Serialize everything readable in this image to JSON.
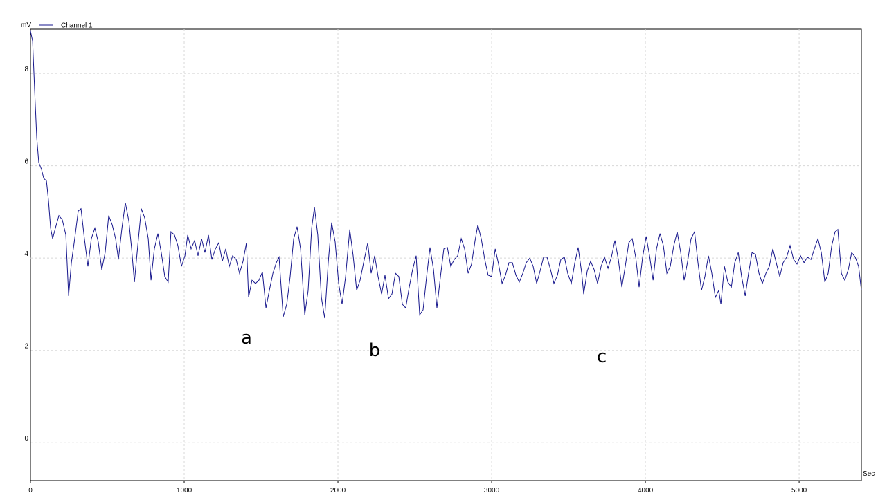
{
  "chart_data": {
    "type": "line",
    "y_label": "mV",
    "x_label": "Sec",
    "xlim": [
      0,
      5405
    ],
    "ylim": [
      -0.82,
      8.96
    ],
    "xticks": [
      0,
      1000,
      2000,
      3000,
      4000,
      5000
    ],
    "yticks": [
      0,
      2,
      4,
      6,
      8
    ],
    "grid": true,
    "legend": "top-left",
    "annotations": [
      "a",
      "b",
      "c"
    ],
    "x": [
      0,
      14,
      27,
      41,
      54,
      72,
      86,
      104,
      117,
      131,
      144,
      162,
      185,
      207,
      230,
      248,
      266,
      288,
      311,
      329,
      351,
      374,
      396,
      419,
      441,
      464,
      486,
      509,
      532,
      554,
      572,
      595,
      617,
      640,
      658,
      676,
      698,
      721,
      743,
      766,
      784,
      806,
      829,
      851,
      874,
      896,
      914,
      937,
      959,
      982,
      1005,
      1023,
      1045,
      1068,
      1090,
      1113,
      1135,
      1158,
      1180,
      1203,
      1225,
      1248,
      1270,
      1293,
      1315,
      1338,
      1360,
      1383,
      1405,
      1419,
      1441,
      1464,
      1486,
      1509,
      1532,
      1554,
      1577,
      1599,
      1617,
      1644,
      1667,
      1689,
      1712,
      1734,
      1757,
      1784,
      1806,
      1829,
      1847,
      1869,
      1892,
      1914,
      1937,
      1959,
      1982,
      2005,
      2027,
      2050,
      2077,
      2099,
      2122,
      2144,
      2167,
      2194,
      2216,
      2239,
      2261,
      2284,
      2306,
      2329,
      2351,
      2374,
      2396,
      2419,
      2441,
      2464,
      2486,
      2509,
      2532,
      2554,
      2577,
      2599,
      2622,
      2644,
      2667,
      2689,
      2712,
      2734,
      2757,
      2779,
      2802,
      2824,
      2847,
      2869,
      2892,
      2910,
      2932,
      2955,
      2977,
      3000,
      3023,
      3045,
      3068,
      3090,
      3113,
      3135,
      3158,
      3180,
      3203,
      3225,
      3248,
      3270,
      3293,
      3315,
      3338,
      3360,
      3383,
      3405,
      3428,
      3450,
      3473,
      3495,
      3518,
      3541,
      3563,
      3586,
      3599,
      3622,
      3644,
      3667,
      3689,
      3712,
      3734,
      3757,
      3779,
      3802,
      3824,
      3847,
      3869,
      3892,
      3914,
      3937,
      3959,
      3982,
      4005,
      4027,
      4050,
      4072,
      4095,
      4117,
      4140,
      4162,
      4185,
      4207,
      4230,
      4252,
      4275,
      4297,
      4320,
      4342,
      4365,
      4387,
      4410,
      4432,
      4455,
      4477,
      4491,
      4514,
      4536,
      4559,
      4581,
      4604,
      4626,
      4649,
      4671,
      4694,
      4716,
      4739,
      4761,
      4784,
      4806,
      4829,
      4851,
      4874,
      4896,
      4919,
      4941,
      4964,
      4986,
      5009,
      5032,
      5054,
      5077,
      5099,
      5122,
      5144,
      5167,
      5189,
      5212,
      5234,
      5252,
      5275,
      5297,
      5320,
      5342,
      5365,
      5387,
      5405
    ],
    "series": [
      {
        "name": "Channel 1",
        "color": "#16168c",
        "values": [
          8.92,
          8.7,
          7.65,
          6.6,
          6.07,
          5.92,
          5.73,
          5.67,
          5.25,
          4.65,
          4.42,
          4.65,
          4.92,
          4.83,
          4.5,
          3.18,
          3.9,
          4.42,
          5.02,
          5.07,
          4.42,
          3.82,
          4.42,
          4.65,
          4.35,
          3.75,
          4.12,
          4.92,
          4.72,
          4.42,
          3.97,
          4.65,
          5.2,
          4.8,
          4.2,
          3.48,
          4.27,
          5.07,
          4.87,
          4.42,
          3.52,
          4.2,
          4.53,
          4.12,
          3.6,
          3.48,
          4.57,
          4.5,
          4.27,
          3.82,
          4.05,
          4.5,
          4.2,
          4.38,
          4.05,
          4.42,
          4.12,
          4.5,
          3.97,
          4.2,
          4.33,
          3.93,
          4.2,
          3.82,
          4.05,
          3.97,
          3.67,
          3.93,
          4.33,
          3.15,
          3.52,
          3.45,
          3.52,
          3.7,
          2.92,
          3.3,
          3.67,
          3.9,
          4.02,
          2.73,
          3.0,
          3.6,
          4.42,
          4.68,
          4.2,
          2.77,
          3.3,
          4.65,
          5.1,
          4.5,
          3.15,
          2.7,
          3.9,
          4.77,
          4.35,
          3.45,
          3.0,
          3.6,
          4.62,
          4.05,
          3.3,
          3.52,
          3.9,
          4.33,
          3.67,
          4.05,
          3.6,
          3.22,
          3.63,
          3.12,
          3.22,
          3.67,
          3.6,
          3.0,
          2.92,
          3.37,
          3.75,
          4.05,
          2.77,
          2.88,
          3.6,
          4.23,
          3.75,
          2.92,
          3.6,
          4.2,
          4.23,
          3.82,
          3.97,
          4.05,
          4.42,
          4.2,
          3.67,
          3.87,
          4.38,
          4.72,
          4.42,
          3.97,
          3.63,
          3.6,
          4.2,
          3.87,
          3.45,
          3.63,
          3.9,
          3.9,
          3.63,
          3.48,
          3.67,
          3.9,
          4.0,
          3.82,
          3.45,
          3.72,
          4.02,
          4.02,
          3.75,
          3.45,
          3.63,
          3.97,
          4.02,
          3.67,
          3.45,
          3.9,
          4.23,
          3.67,
          3.22,
          3.72,
          3.93,
          3.75,
          3.45,
          3.82,
          4.02,
          3.78,
          4.02,
          4.38,
          3.97,
          3.37,
          3.82,
          4.33,
          4.42,
          4.02,
          3.37,
          4.02,
          4.47,
          4.05,
          3.52,
          4.2,
          4.53,
          4.27,
          3.67,
          3.82,
          4.27,
          4.57,
          4.12,
          3.52,
          3.93,
          4.42,
          4.57,
          3.9,
          3.3,
          3.6,
          4.05,
          3.67,
          3.15,
          3.3,
          3.0,
          3.82,
          3.48,
          3.37,
          3.9,
          4.12,
          3.6,
          3.18,
          3.67,
          4.12,
          4.08,
          3.67,
          3.45,
          3.67,
          3.82,
          4.2,
          3.9,
          3.6,
          3.9,
          4.02,
          4.27,
          3.97,
          3.87,
          4.05,
          3.9,
          4.02,
          3.97,
          4.2,
          4.42,
          4.12,
          3.48,
          3.67,
          4.27,
          4.57,
          4.62,
          3.67,
          3.52,
          3.75,
          4.12,
          4.02,
          3.82,
          3.3
        ]
      }
    ]
  }
}
